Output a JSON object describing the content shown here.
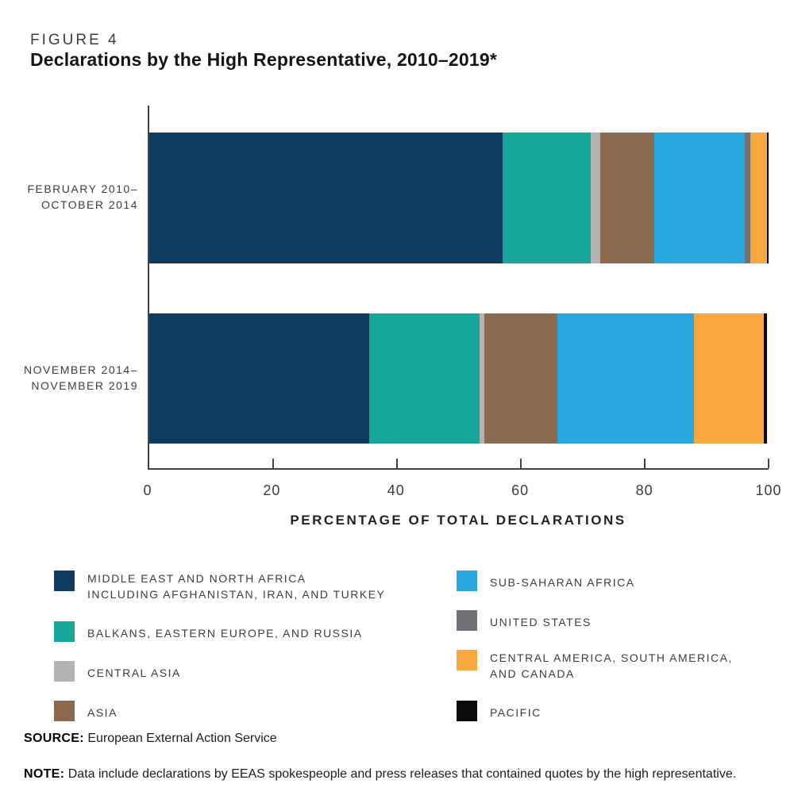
{
  "title": {
    "figure_label": "FIGURE 4",
    "text": "Declarations by the High Representative, 2010–2019*"
  },
  "chart_data": {
    "type": "bar",
    "orientation": "horizontal",
    "stacked": true,
    "values_are_percent": true,
    "title": "Declarations by the High Representative, 2010–2019*",
    "xlabel": "PERCENTAGE OF TOTAL DECLARATIONS",
    "ylabel": "",
    "xlim": [
      0,
      100
    ],
    "x_ticks": [
      0,
      20,
      40,
      60,
      80,
      100
    ],
    "grid": false,
    "legend_position": "bottom-two-columns",
    "categories": [
      {
        "lines": [
          "FEBRUARY 2010–",
          "OCTOBER 2014"
        ]
      },
      {
        "lines": [
          "NOVEMBER 2014–",
          "NOVEMBER 2019"
        ]
      }
    ],
    "series": [
      {
        "name": "MIDDLE EAST AND NORTH AFRICA INCLUDING AFGHANISTAN, IRAN, AND TURKEY",
        "legend_lines": [
          "MIDDLE EAST AND NORTH AFRICA",
          "INCLUDING AFGHANISTAN, IRAN, AND TURKEY"
        ],
        "color": "#0d3c60",
        "values": [
          57.0,
          35.5
        ]
      },
      {
        "name": "BALKANS, EASTERN EUROPE, AND RUSSIA",
        "legend_lines": [
          "BALKANS, EASTERN EUROPE, AND RUSSIA"
        ],
        "color": "#17a79a",
        "values": [
          14.3,
          17.8
        ]
      },
      {
        "name": "CENTRAL ASIA",
        "legend_lines": [
          "CENTRAL ASIA"
        ],
        "color": "#b2b4b3",
        "values": [
          1.5,
          0.8
        ]
      },
      {
        "name": "ASIA",
        "legend_lines": [
          "ASIA"
        ],
        "color": "#8a6b51",
        "values": [
          8.8,
          11.8
        ]
      },
      {
        "name": "SUB-SAHARAN AFRICA",
        "legend_lines": [
          "SUB-SAHARAN AFRICA"
        ],
        "color": "#29a8e0",
        "values": [
          14.5,
          22.0
        ]
      },
      {
        "name": "UNITED STATES",
        "legend_lines": [
          "UNITED STATES"
        ],
        "color": "#707174",
        "values": [
          1.0,
          0.0
        ]
      },
      {
        "name": "CENTRAL AMERICA, SOUTH AMERICA, AND CANADA",
        "legend_lines": [
          "CENTRAL AMERICA, SOUTH AMERICA,",
          "AND CANADA"
        ],
        "color": "#f8a83e",
        "values": [
          2.6,
          11.4
        ]
      },
      {
        "name": "PACIFIC",
        "legend_lines": [
          "PACIFIC"
        ],
        "color": "#0a0a0a",
        "values": [
          0.3,
          0.5
        ]
      }
    ],
    "legend_columns": {
      "left": [
        0,
        1,
        2,
        3
      ],
      "right": [
        4,
        5,
        6,
        7
      ]
    }
  },
  "colors": {
    "axis": "#404040",
    "text": "#3d3d3d",
    "title": "#141414"
  },
  "source": {
    "label": "SOURCE:",
    "text": "European External Action Service"
  },
  "note": {
    "label": "NOTE:",
    "text": "Data include declarations by EEAS spokespeople and press releases that contained quotes by the high representative."
  }
}
